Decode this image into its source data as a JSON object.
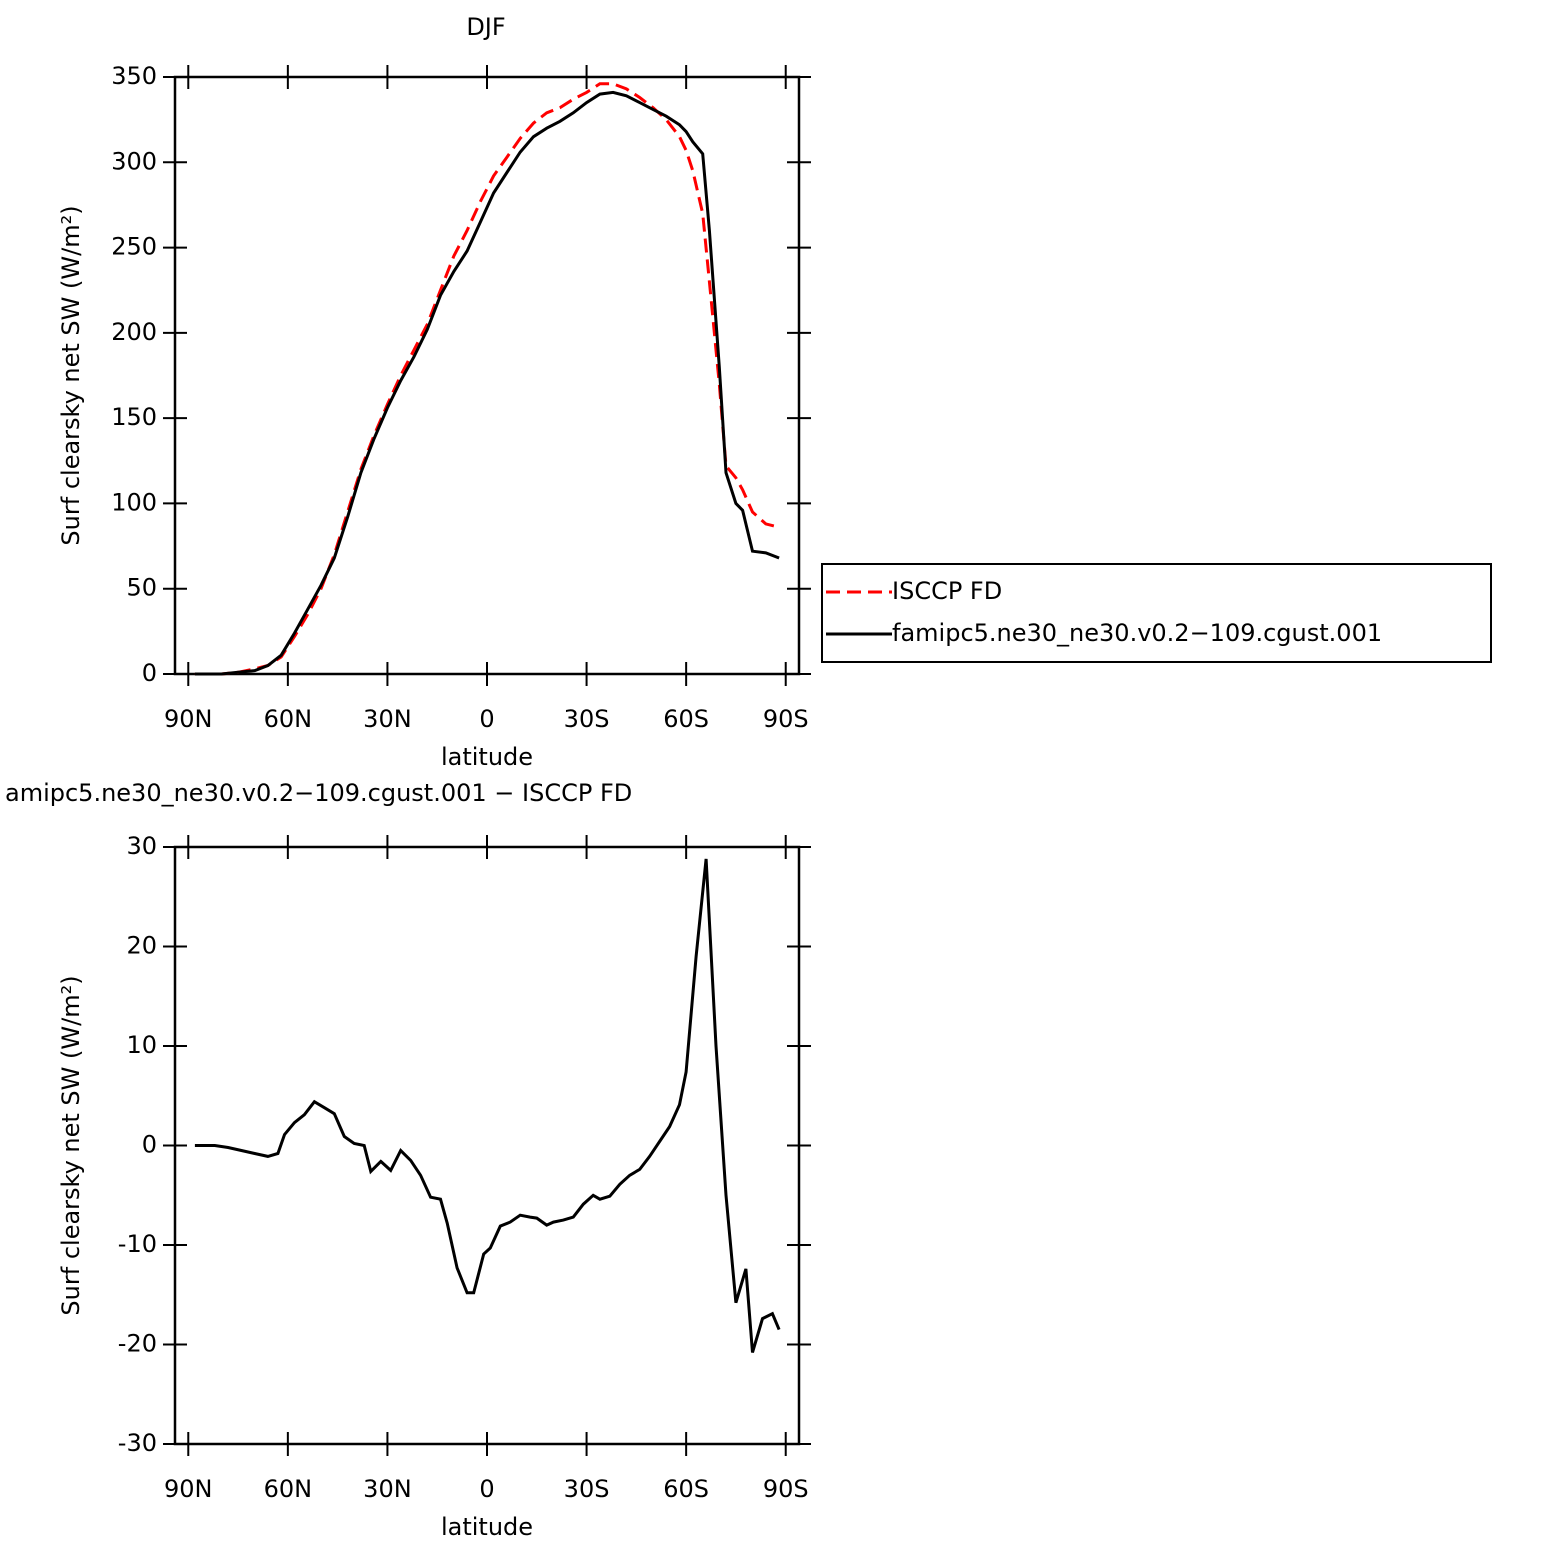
{
  "chart_data": [
    {
      "type": "line",
      "title": "DJF",
      "x_label": "latitude",
      "y_label": "Surf clearsky net SW (W/m²)",
      "xlim": [
        94,
        -94
      ],
      "ylim": [
        0,
        350
      ],
      "xticks": [
        {
          "value": 90,
          "label": "90N"
        },
        {
          "value": 60,
          "label": "60N"
        },
        {
          "value": 30,
          "label": "30N"
        },
        0,
        {
          "value": -30,
          "label": "30S"
        },
        {
          "value": -60,
          "label": "60S"
        },
        {
          "value": -90,
          "label": "90S"
        }
      ],
      "yticks": [
        0,
        50,
        100,
        150,
        200,
        250,
        300,
        350
      ],
      "x": [
        88,
        80,
        75,
        70,
        66,
        62,
        58,
        54,
        50,
        46,
        42,
        38,
        34,
        30,
        26,
        22,
        18,
        14,
        10,
        6,
        2,
        -2,
        -6,
        -10,
        -14,
        -18,
        -22,
        -26,
        -30,
        -34,
        -38,
        -42,
        -46,
        -50,
        -54,
        -58,
        -60,
        -62,
        -65,
        -67,
        -70,
        -72,
        -75,
        -77,
        -80,
        -84,
        -88
      ],
      "series": [
        {
          "name": "ISCCP FD",
          "color": "#ff0000",
          "dashed": true,
          "values": [
            0,
            0,
            1,
            3,
            5,
            10,
            22,
            35,
            50,
            70,
            95,
            120,
            140,
            158,
            175,
            190,
            205,
            225,
            245,
            260,
            277,
            292,
            303,
            314,
            323,
            329,
            332,
            337,
            341,
            346,
            346,
            343,
            338,
            332,
            325,
            315,
            307,
            295,
            270,
            230,
            170,
            122,
            115,
            108,
            95,
            88,
            86
          ]
        },
        {
          "name": "famipc5.ne30_ne30.v0.2−109.cgust.001",
          "color": "#000000",
          "dashed": false,
          "values": [
            0,
            0,
            1,
            2,
            5,
            11,
            24,
            38,
            52,
            68,
            92,
            118,
            138,
            156,
            172,
            186,
            202,
            222,
            236,
            248,
            265,
            282,
            294,
            306,
            315,
            320,
            324,
            329,
            335,
            340,
            341,
            339,
            335,
            331,
            327,
            322,
            318,
            312,
            305,
            260,
            180,
            118,
            100,
            96,
            72,
            71,
            68
          ]
        }
      ]
    },
    {
      "type": "line",
      "title": "amipc5.ne30_ne30.v0.2−109.cgust.001 − ISCCP FD",
      "x_label": "latitude",
      "y_label": "Surf clearsky net SW (W/m²)",
      "xlim": [
        94,
        -94
      ],
      "ylim": [
        -30,
        30
      ],
      "xticks": [
        {
          "value": 90,
          "label": "90N"
        },
        {
          "value": 60,
          "label": "60N"
        },
        {
          "value": 30,
          "label": "30N"
        },
        0,
        {
          "value": -30,
          "label": "30S"
        },
        {
          "value": -60,
          "label": "60S"
        },
        {
          "value": -90,
          "label": "90S"
        }
      ],
      "yticks": [
        -30,
        -20,
        -10,
        0,
        10,
        20,
        30
      ],
      "x": [
        88,
        82,
        78,
        74,
        70,
        66,
        63,
        61,
        58,
        55,
        52,
        49,
        46,
        43,
        40,
        37,
        35,
        32,
        29,
        26,
        23,
        20,
        17,
        14,
        12,
        9,
        6,
        4,
        1,
        -1,
        -4,
        -7,
        -10,
        -13,
        -15,
        -18,
        -20,
        -23,
        -26,
        -29,
        -32,
        -34,
        -37,
        -40,
        -43,
        -46,
        -49,
        -52,
        -55,
        -58,
        -60,
        -63,
        -66,
        -69,
        -72,
        -75,
        -78,
        -80,
        -83,
        -86,
        -88
      ],
      "series": [
        {
          "color": "#000000",
          "dashed": false,
          "values": [
            0,
            0,
            -0.2,
            -0.5,
            -0.8,
            -1.1,
            -0.8,
            1.1,
            2.3,
            3.1,
            4.4,
            3.8,
            3.2,
            0.9,
            0.2,
            0,
            -2.6,
            -1.6,
            -2.5,
            -0.5,
            -1.5,
            -3,
            -5.2,
            -5.4,
            -7.8,
            -12.3,
            -14.8,
            -14.8,
            -10.9,
            -10.3,
            -8.1,
            -7.7,
            -7,
            -7.2,
            -7.3,
            -8,
            -7.7,
            -7.5,
            -7.2,
            -5.9,
            -5,
            -5.4,
            -5.1,
            -3.9,
            -3,
            -2.4,
            -1.1,
            0.4,
            1.9,
            4.1,
            7.4,
            19,
            28.8,
            10,
            -5,
            -15.8,
            -12.4,
            -20.8,
            -17.4,
            -16.9,
            -18.5
          ]
        }
      ]
    }
  ]
}
